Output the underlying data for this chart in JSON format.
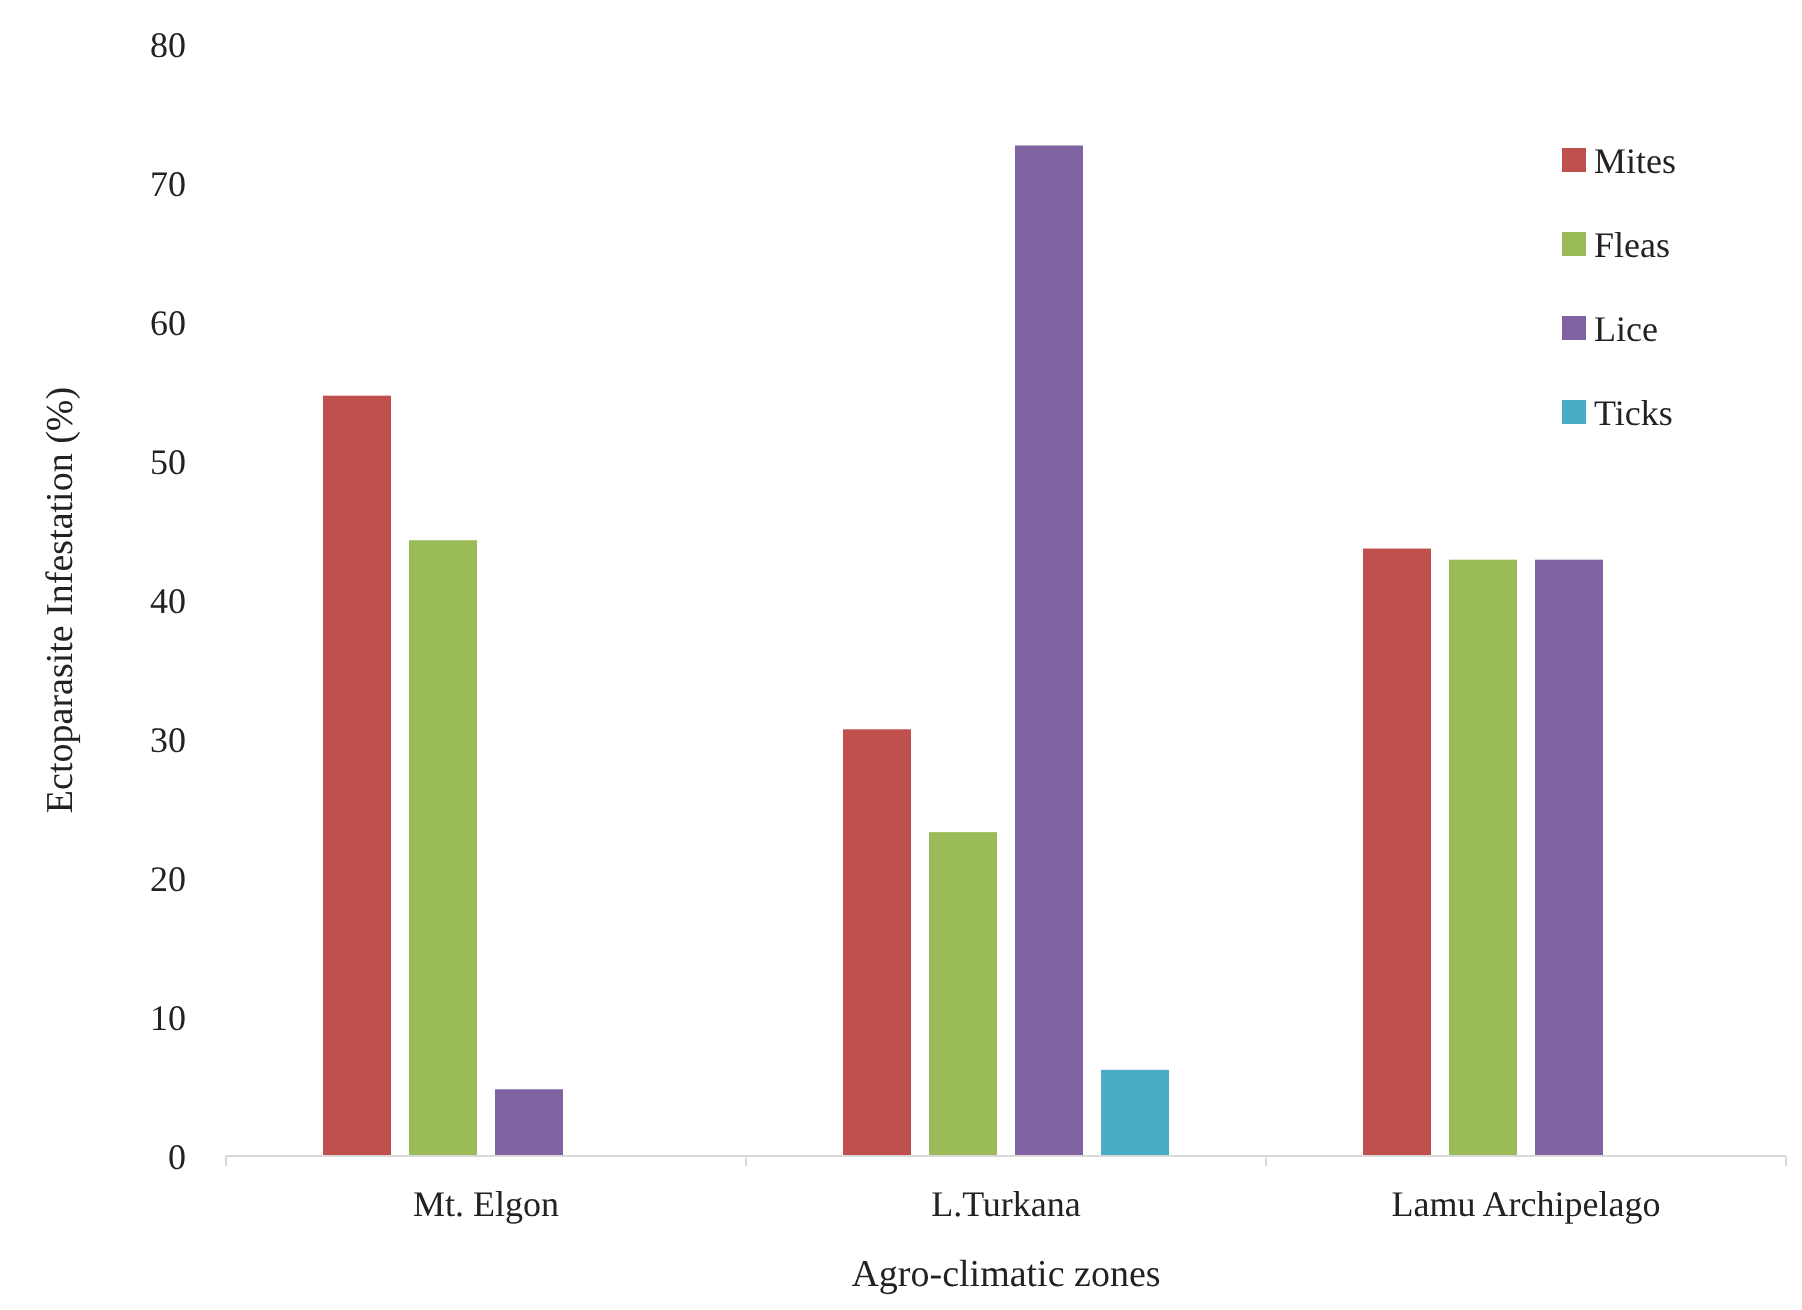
{
  "chart_data": {
    "type": "bar",
    "xlabel": "Agro-climatic zones",
    "ylabel": "Ectoparasite Infestation (%)",
    "categories": [
      "Mt. Elgon",
      "L.Turkana",
      "Lamu Archipelago"
    ],
    "series": [
      {
        "name": "Mites",
        "color": "#c0504d",
        "values": [
          54.7,
          30.7,
          43.7
        ]
      },
      {
        "name": "Fleas",
        "color": "#9bbb59",
        "values": [
          44.3,
          23.3,
          42.9
        ]
      },
      {
        "name": "Lice",
        "color": "#8064a2",
        "values": [
          4.8,
          72.7,
          42.9
        ]
      },
      {
        "name": "Ticks",
        "color": "#4bacc6",
        "values": [
          null,
          6.2,
          null
        ]
      }
    ],
    "ylim": [
      0,
      80
    ],
    "yticks": [
      0,
      10,
      20,
      30,
      40,
      50,
      60,
      70,
      80
    ],
    "grid": false,
    "legend": "top right"
  }
}
